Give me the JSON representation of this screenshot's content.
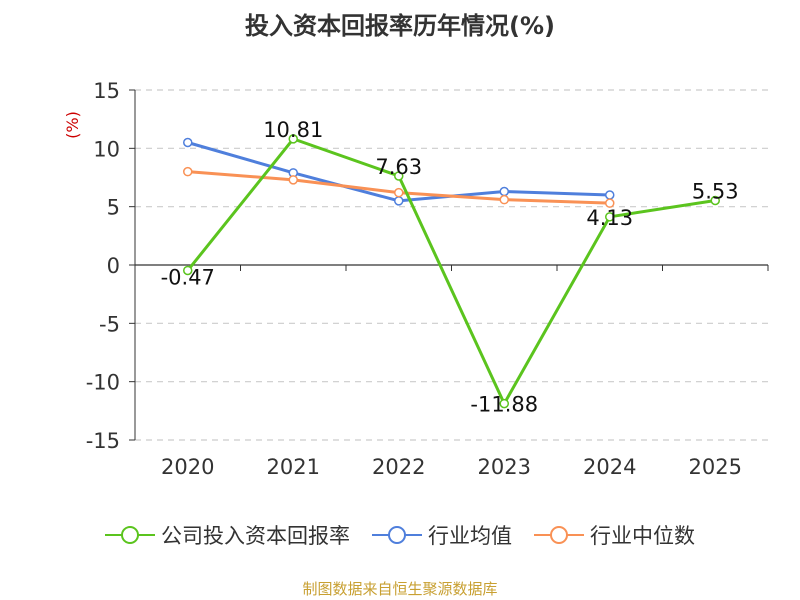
{
  "title": "投入资本回报率历年情况(%)",
  "source": "制图数据来自恒生聚源数据库",
  "chart_data": {
    "type": "line",
    "title": "投入资本回报率历年情况(%)",
    "ylabel": "(%)",
    "xlabel": "",
    "categories": [
      "2020",
      "2021",
      "2022",
      "2023",
      "2024",
      "2025"
    ],
    "ylim": [
      -15,
      15
    ],
    "yticks": [
      15,
      10,
      5,
      0,
      -5,
      -10,
      -15
    ],
    "grid": true,
    "legend_position": "bottom",
    "series": [
      {
        "name": "公司投入资本回报率",
        "color": "#5bc41e",
        "values": [
          -0.47,
          10.81,
          7.63,
          -11.88,
          4.13,
          5.53
        ],
        "labels": [
          "-0.47",
          "10.81",
          "7.63",
          "-11.88",
          "4.13",
          "5.53"
        ]
      },
      {
        "name": "行业均值",
        "color": "#4f7fdc",
        "values": [
          10.5,
          7.9,
          5.5,
          6.3,
          6.0,
          null
        ]
      },
      {
        "name": "行业中位数",
        "color": "#f99155",
        "values": [
          8.0,
          7.3,
          6.2,
          5.6,
          5.3,
          null
        ]
      }
    ]
  }
}
